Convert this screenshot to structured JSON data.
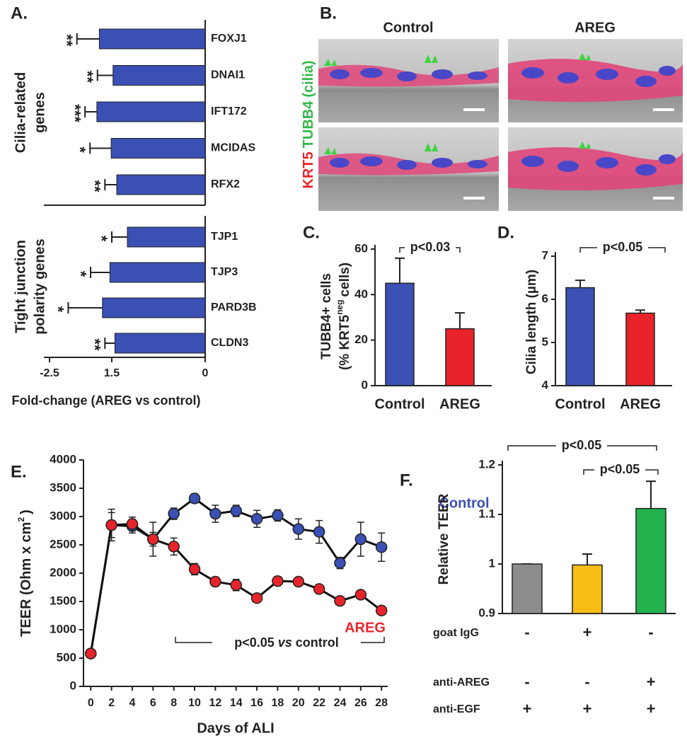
{
  "chart_data": [
    {
      "type": "bar",
      "orientation": "horizontal",
      "panel_label": "A.",
      "color": "#3a50b4",
      "groups": [
        {
          "label": [
            "Cilia-related",
            "genes"
          ],
          "categories": [
            "FOXJ1",
            "DNAI1",
            "IFT172",
            "MCIDAS",
            "RFX2"
          ],
          "values": [
            -1.7,
            -1.48,
            -1.74,
            -1.51,
            -1.42
          ],
          "errors": [
            0.36,
            0.25,
            0.19,
            0.34,
            0.19
          ],
          "stars": [
            "**",
            "**",
            "***",
            "*",
            "**"
          ]
        },
        {
          "label": [
            "Tight junction",
            "polarity genes"
          ],
          "categories": [
            "TJP1",
            "TJP3",
            "PARD3B",
            "CLDN3"
          ],
          "values": [
            -1.25,
            -1.53,
            -1.65,
            -1.45
          ],
          "errors": [
            0.25,
            0.31,
            0.55,
            0.16
          ],
          "stars": [
            "*",
            "*",
            "*",
            "**"
          ]
        }
      ],
      "xlim": [
        -2.5,
        0
      ],
      "xticks": [
        -2.5,
        {
          "value": -1.5,
          "label": "1.5"
        },
        0
      ],
      "xlabel": "Fold-change (AREG vs control)"
    },
    {
      "type": "bar",
      "panel_label": "C.",
      "categories": [
        "Control",
        "AREG"
      ],
      "values": [
        45,
        25
      ],
      "errors": [
        11,
        7
      ],
      "colors": [
        "#3a50b4",
        "#e8242a"
      ],
      "ylim": [
        0,
        60
      ],
      "yticks": [
        0,
        20,
        40,
        60
      ],
      "ylabel": [
        "TUBB4+ cells",
        [
          "(% KRT5",
          "neg",
          "cells)"
        ]
      ],
      "annotations": [
        "p<0.03"
      ]
    },
    {
      "type": "bar",
      "panel_label": "D.",
      "categories": [
        "Control",
        "AREG"
      ],
      "values": [
        6.27,
        5.68
      ],
      "errors": [
        0.17,
        0.07
      ],
      "colors": [
        "#3a50b4",
        "#e8242a"
      ],
      "ylim": [
        4,
        7
      ],
      "yticks": [
        4,
        5,
        6,
        7
      ],
      "ylabel": [
        "Cilia length (µm)"
      ],
      "annotations": [
        "p<0.05"
      ]
    },
    {
      "type": "line",
      "panel_label": "E.",
      "x": [
        0,
        2,
        4,
        6,
        8,
        10,
        12,
        14,
        16,
        18,
        20,
        22,
        24,
        26,
        28
      ],
      "series": [
        {
          "name": "Control",
          "color": "#3a50b4",
          "values": [
            580,
            2850,
            2830,
            2600,
            3050,
            3320,
            3050,
            3100,
            2960,
            3020,
            2780,
            2730,
            2180,
            2600,
            2460
          ],
          "errors": [
            0,
            220,
            120,
            300,
            100,
            80,
            150,
            100,
            150,
            100,
            180,
            200,
            100,
            300,
            250
          ]
        },
        {
          "name": "AREG",
          "color": "#e8242a",
          "values": [
            580,
            2850,
            2870,
            2600,
            2470,
            2070,
            1850,
            1790,
            1560,
            1860,
            1850,
            1720,
            1510,
            1620,
            1340
          ],
          "errors": [
            0,
            280,
            120,
            120,
            150,
            100,
            80,
            100,
            60,
            80,
            60,
            60,
            60,
            60,
            60
          ]
        }
      ],
      "line_color": "#111111",
      "xlim": [
        -0.7,
        28.6
      ],
      "xticks": [
        0,
        2,
        4,
        6,
        8,
        10,
        12,
        14,
        16,
        18,
        20,
        22,
        24,
        26,
        28
      ],
      "ylim": [
        0,
        4000
      ],
      "yticks": [
        0,
        500,
        1000,
        1500,
        2000,
        2500,
        3000,
        3500,
        4000
      ],
      "xlabel": "Days of ALI",
      "ylabel": [
        [
          "TEER (Ohm x cm",
          "2",
          ")"
        ]
      ],
      "annotations": [
        [
          "p<0.05",
          "vs",
          "control"
        ]
      ]
    },
    {
      "type": "bar",
      "panel_label": "F.",
      "values": [
        1,
        0.998,
        1.112
      ],
      "errors": [
        0,
        0.022,
        0.055
      ],
      "colors": [
        "#8c8c8c",
        "#f7bd14",
        "#22b14c"
      ],
      "ylim": [
        0.9,
        1.2
      ],
      "yticks": [
        0.9,
        1,
        1.1,
        1.2
      ],
      "ylabel": [
        "Relative TEER"
      ],
      "annotations": [
        "p<0.05",
        "p<0.05"
      ],
      "treatments": [
        {
          "name": "goat IgG",
          "signs": [
            "-",
            "+",
            "-"
          ]
        },
        {
          "name": "anti-AREG",
          "signs": [
            "-",
            "-",
            "+"
          ]
        },
        {
          "name": "anti-EGF",
          "signs": [
            "+",
            "+",
            "+"
          ]
        }
      ]
    }
  ],
  "image_panel": {
    "panel_label": "B.",
    "columns": [
      "Control",
      "AREG"
    ],
    "ylabel": [
      "KRT5",
      "TUBB4",
      "(cilia)"
    ],
    "ylabel_colors": [
      "#e8242a",
      "#33b84a",
      "#33b84a"
    ]
  }
}
